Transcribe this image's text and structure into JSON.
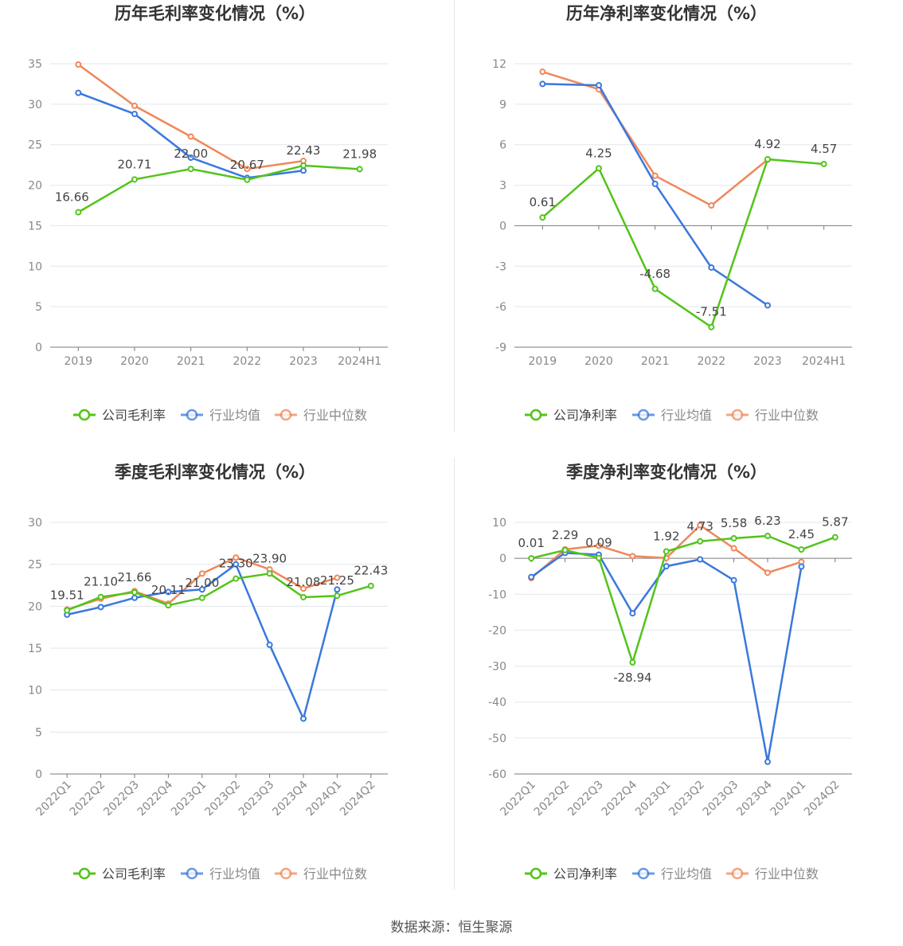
{
  "colors": {
    "company": "#52c41a",
    "avg": "#3a78dc",
    "median": "#f0875a"
  },
  "source_label": "数据来源：恒生聚源",
  "chart_data": [
    {
      "type": "line",
      "title": "历年毛利率变化情况（%）",
      "categories": [
        "2019",
        "2020",
        "2021",
        "2022",
        "2023",
        "2024H1"
      ],
      "ylim": [
        0,
        35
      ],
      "yticks": [
        0,
        5,
        10,
        15,
        20,
        25,
        30,
        35
      ],
      "series": [
        {
          "name": "公司毛利率",
          "key": "company",
          "values": [
            16.66,
            20.71,
            22.0,
            20.67,
            22.43,
            21.98
          ]
        },
        {
          "name": "行业均值",
          "key": "avg",
          "values": [
            31.4,
            28.8,
            23.4,
            20.9,
            21.8,
            null
          ]
        },
        {
          "name": "行业中位数",
          "key": "median",
          "values": [
            34.9,
            29.8,
            26.0,
            22.0,
            23.0,
            null
          ]
        }
      ],
      "data_labels": [
        "16.66",
        "20.71",
        "22.00",
        "20.67",
        "22.43",
        "21.98"
      ]
    },
    {
      "type": "line",
      "title": "历年净利率变化情况（%）",
      "categories": [
        "2019",
        "2020",
        "2021",
        "2022",
        "2023",
        "2024H1"
      ],
      "ylim": [
        -9,
        12
      ],
      "yticks": [
        -9,
        -6,
        -3,
        0,
        3,
        6,
        9,
        12
      ],
      "series": [
        {
          "name": "公司净利率",
          "key": "company",
          "values": [
            0.61,
            4.25,
            -4.68,
            -7.51,
            4.92,
            4.57
          ]
        },
        {
          "name": "行业均值",
          "key": "avg",
          "values": [
            10.5,
            10.4,
            3.1,
            -3.1,
            -5.9,
            null
          ]
        },
        {
          "name": "行业中位数",
          "key": "median",
          "values": [
            11.4,
            10.1,
            3.7,
            1.5,
            4.9,
            null
          ]
        }
      ],
      "data_labels": [
        "0.61",
        "4.25",
        "-4.68",
        "-7.51",
        "4.92",
        "4.57"
      ]
    },
    {
      "type": "line",
      "title": "季度毛利率变化情况（%）",
      "categories": [
        "2022Q1",
        "2022Q2",
        "2022Q3",
        "2022Q4",
        "2023Q1",
        "2023Q2",
        "2023Q3",
        "2023Q4",
        "2024Q1",
        "2024Q2"
      ],
      "ylim": [
        0,
        30
      ],
      "yticks": [
        0,
        5,
        10,
        15,
        20,
        25,
        30
      ],
      "series": [
        {
          "name": "公司毛利率",
          "key": "company",
          "values": [
            19.51,
            21.1,
            21.66,
            20.11,
            21.0,
            23.3,
            23.9,
            21.08,
            21.25,
            22.43
          ]
        },
        {
          "name": "行业均值",
          "key": "avg",
          "values": [
            19.0,
            19.9,
            21.0,
            21.7,
            22.0,
            25.0,
            15.4,
            6.6,
            22.0,
            null
          ]
        },
        {
          "name": "行业中位数",
          "key": "median",
          "values": [
            19.6,
            20.9,
            21.8,
            20.3,
            23.9,
            25.8,
            24.4,
            22.1,
            23.4,
            null
          ]
        }
      ],
      "data_labels": [
        "19.51",
        "21.10",
        "21.66",
        "20.11",
        "21.00",
        "23.30",
        "23.90",
        "21.08",
        "21.25",
        "22.43"
      ]
    },
    {
      "type": "line",
      "title": "季度净利率变化情况（%）",
      "categories": [
        "2022Q1",
        "2022Q2",
        "2022Q3",
        "2022Q4",
        "2023Q1",
        "2023Q2",
        "2023Q3",
        "2023Q4",
        "2024Q1",
        "2024Q2"
      ],
      "ylim": [
        -60,
        10
      ],
      "yticks": [
        -60,
        -50,
        -40,
        -30,
        -20,
        -10,
        0,
        10
      ],
      "series": [
        {
          "name": "公司净利率",
          "key": "company",
          "values": [
            0.01,
            2.29,
            0.09,
            -28.94,
            1.92,
            4.73,
            5.58,
            6.23,
            2.45,
            5.87
          ]
        },
        {
          "name": "行业均值",
          "key": "avg",
          "values": [
            -5.2,
            1.5,
            1.0,
            -15.3,
            -2.2,
            -0.3,
            -6.1,
            -56.6,
            -2.3,
            null
          ]
        },
        {
          "name": "行业中位数",
          "key": "median",
          "values": [
            -5.5,
            2.5,
            3.5,
            0.6,
            0.1,
            9.2,
            2.8,
            -4.0,
            -1.0,
            null
          ]
        }
      ],
      "data_labels": [
        "0.01",
        "2.29",
        "0.09",
        "-28.94",
        "1.92",
        "4.73",
        "5.58",
        "6.23",
        "2.45",
        "5.87"
      ]
    }
  ]
}
